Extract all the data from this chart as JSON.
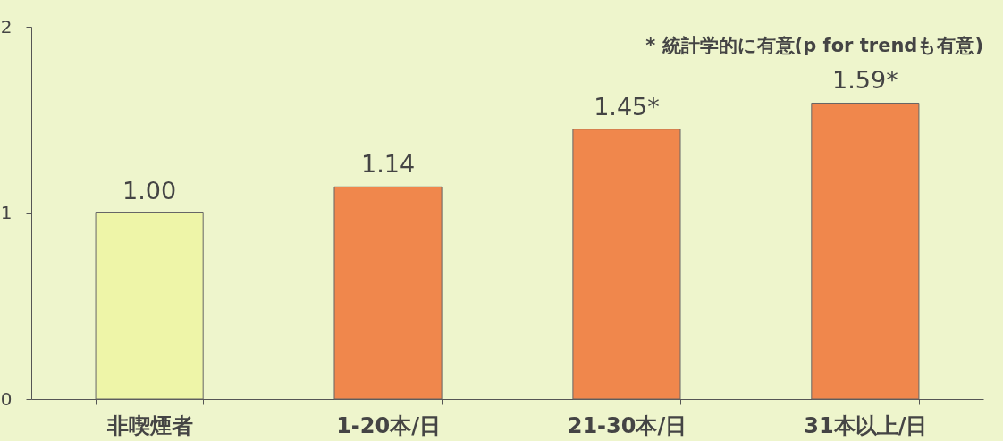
{
  "chart_data": {
    "type": "bar",
    "categories": [
      "非喫煙者",
      "1-20本/日",
      "21-30本/日",
      "31本以上/日"
    ],
    "values": [
      1.0,
      1.14,
      1.45,
      1.59
    ],
    "colors": [
      "#eef5a8",
      "#f0874c",
      "#f0874c",
      "#f0874c"
    ],
    "value_labels": [
      "1.00",
      "1.14",
      "1.45*",
      "1.59*"
    ],
    "annotations": [
      "* 統計学的に有意(p for trendも有意)"
    ],
    "ylim": [
      0,
      2
    ],
    "yticks": [
      0,
      1,
      2
    ],
    "grid": false
  }
}
